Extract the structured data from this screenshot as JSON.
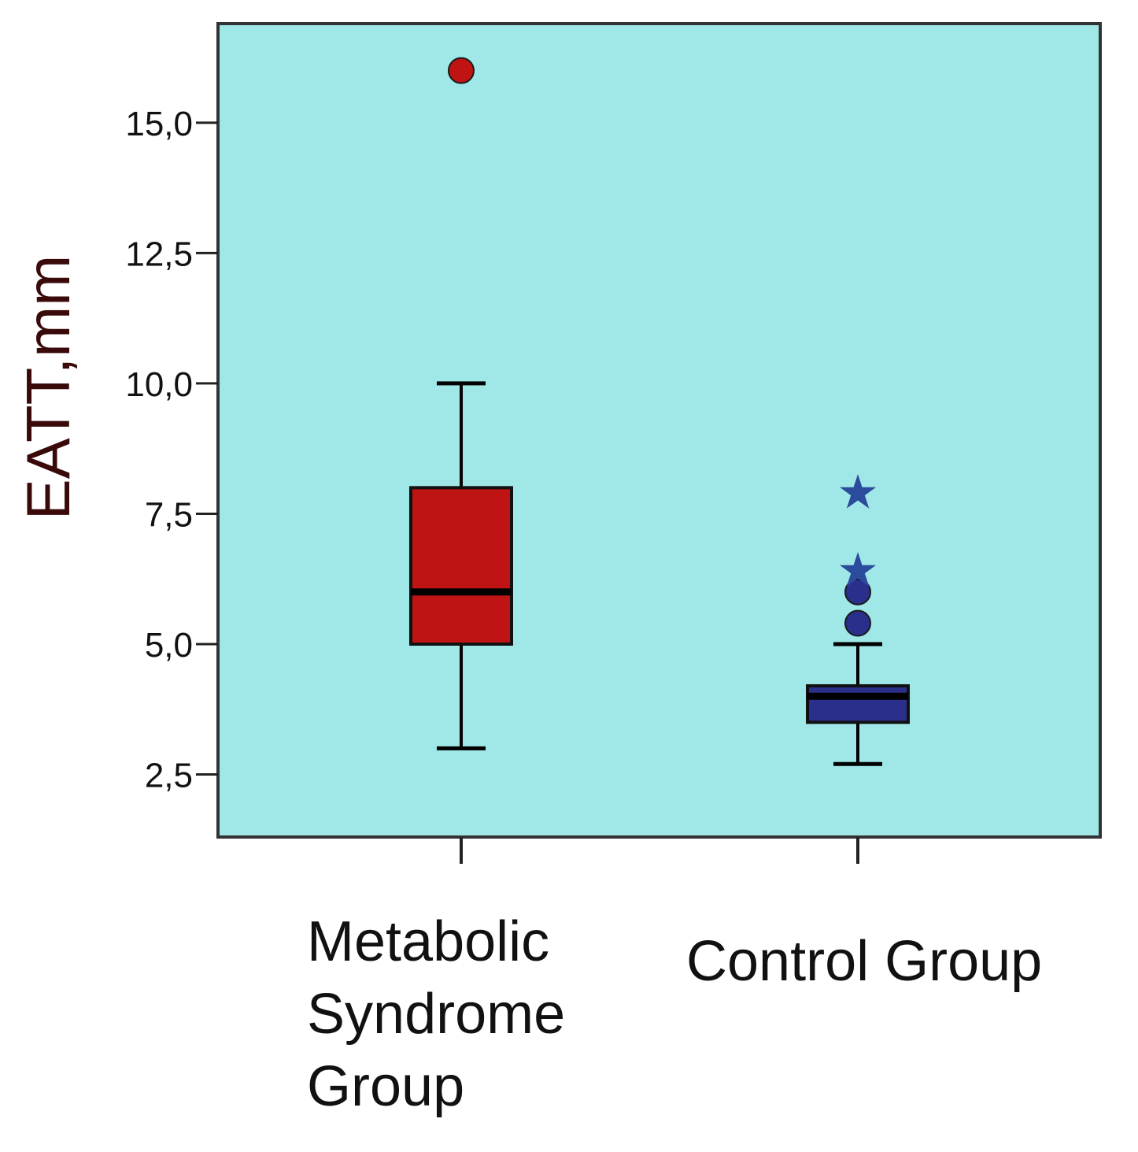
{
  "chart_data": {
    "type": "boxplot",
    "title": "",
    "xlabel": "",
    "ylabel": "EATT,mm",
    "ylim": [
      1.3,
      16.9
    ],
    "yticks": [
      2.5,
      5.0,
      7.5,
      10.0,
      12.5,
      15.0
    ],
    "ytick_labels": [
      "2,5",
      "5,0",
      "7,5",
      "10,0",
      "12,5",
      "15,0"
    ],
    "grid": false,
    "background_color": "#a0e7e8",
    "categories": [
      {
        "label_lines": [
          "Metabolic",
          "Syndrome",
          "Group"
        ],
        "color": "#c01414",
        "whisker_low": 3.0,
        "q1": 5.0,
        "median": 6.0,
        "q3": 8.0,
        "whisker_high": 10.0,
        "outliers": [
          {
            "value": 16.0,
            "marker": "circle",
            "color": "#c01414"
          }
        ]
      },
      {
        "label_lines": [
          "Control Group"
        ],
        "color": "#2b2f8c",
        "whisker_low": 2.7,
        "q1": 3.5,
        "median": 4.0,
        "q3": 4.2,
        "whisker_high": 5.0,
        "outliers": [
          {
            "value": 5.4,
            "marker": "circle",
            "color": "#2b2f8c"
          },
          {
            "value": 6.0,
            "marker": "circle",
            "color": "#2b2f8c"
          },
          {
            "value": 6.5,
            "marker": "star",
            "color": "#2b4b9c"
          },
          {
            "value": 8.0,
            "marker": "star",
            "color": "#2b4b9c"
          }
        ]
      }
    ]
  }
}
